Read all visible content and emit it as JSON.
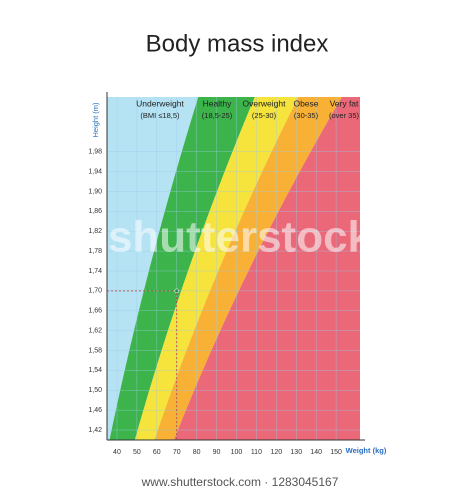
{
  "chart_data": {
    "type": "bmi-bands",
    "title": "Body mass index",
    "x_label": "Weight (kg)",
    "y_label": "Height (m)",
    "xlim": [
      35,
      162
    ],
    "xticks": [
      40,
      50,
      60,
      70,
      80,
      90,
      100,
      110,
      120,
      130,
      140,
      150
    ],
    "ylim": [
      1.4,
      2.09
    ],
    "yticks": [
      {
        "value": 1.42,
        "label": "1,42"
      },
      {
        "value": 1.46,
        "label": "1,46"
      },
      {
        "value": 1.5,
        "label": "1,50"
      },
      {
        "value": 1.54,
        "label": "1,54"
      },
      {
        "value": 1.58,
        "label": "1,58"
      },
      {
        "value": 1.62,
        "label": "1,62"
      },
      {
        "value": 1.66,
        "label": "1,66"
      },
      {
        "value": 1.7,
        "label": "1,70"
      },
      {
        "value": 1.74,
        "label": "1,74"
      },
      {
        "value": 1.78,
        "label": "1,78"
      },
      {
        "value": 1.82,
        "label": "1,82"
      },
      {
        "value": 1.86,
        "label": "1,86"
      },
      {
        "value": 1.9,
        "label": "1,90"
      },
      {
        "value": 1.94,
        "label": "1,94"
      },
      {
        "value": 1.98,
        "label": "1,98"
      }
    ],
    "grid": true,
    "thresholds": [
      18.5,
      25,
      30,
      35
    ],
    "bands": [
      {
        "name": "Underweight",
        "range_label": "(BMI ≤18,5)",
        "color": "#b5e3f4"
      },
      {
        "name": "Healthy",
        "range_label": "(18,5-25)",
        "color": "#3cb44b"
      },
      {
        "name": "Overweight",
        "range_label": "(25-30)",
        "color": "#f6e33c"
      },
      {
        "name": "Obese",
        "range_label": "(30-35)",
        "color": "#f8b134"
      },
      {
        "name": "Very fat",
        "range_label": "(over 35)",
        "color": "#ea6878"
      }
    ],
    "marker": {
      "x": 70,
      "y": 1.7
    },
    "watermark": "shutterstock",
    "footer": "www.shutterstock.com · 1283045167"
  }
}
